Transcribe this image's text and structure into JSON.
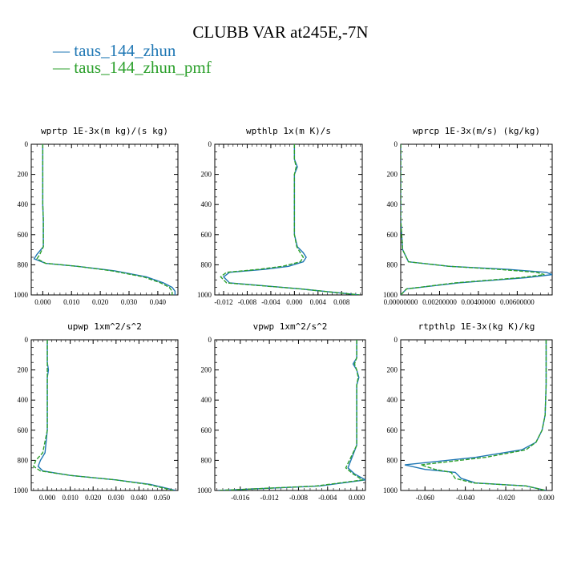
{
  "title": "CLUBB VAR at245E,-7N",
  "legend": [
    {
      "label": "taus_144_zhun",
      "color": "#1f77b4",
      "dash": "solid"
    },
    {
      "label": "taus_144_zhun_pmf",
      "color": "#2ca02c",
      "dash": "dashed"
    }
  ],
  "chart_data": [
    {
      "type": "line",
      "title": "wprtp  1E-3x(m kg)/(s kg)",
      "xlim": [
        -0.004,
        0.047
      ],
      "ylim": [
        1000,
        0
      ],
      "xticks": [
        0.0,
        0.01,
        0.02,
        0.03,
        0.04
      ],
      "xtick_labels": [
        "0.000",
        "0.010",
        "0.020",
        "0.030",
        "0.040"
      ],
      "yticks": [
        0,
        200,
        400,
        600,
        800,
        1000
      ],
      "series": [
        {
          "name": "taus_144_zhun",
          "color": "#1f77b4",
          "dash": "solid",
          "x": [
            0.0,
            0.0,
            0.0,
            0.0,
            0.0,
            0.0002,
            0.0002,
            -0.002,
            -0.003,
            0.001,
            0.012,
            0.025,
            0.036,
            0.042,
            0.045,
            0.046,
            0.046
          ],
          "y": [
            0,
            100,
            200,
            300,
            400,
            500,
            680,
            730,
            760,
            790,
            810,
            840,
            880,
            920,
            950,
            975,
            1000
          ]
        },
        {
          "name": "taus_144_zhun_pmf",
          "color": "#2ca02c",
          "dash": "dashed",
          "x": [
            0.0,
            0.0,
            0.0,
            0.0,
            0.0,
            0.0002,
            0.0002,
            -0.001,
            -0.002,
            0.001,
            0.012,
            0.024,
            0.035,
            0.041,
            0.044,
            0.045,
            0.045
          ],
          "y": [
            0,
            100,
            200,
            300,
            400,
            500,
            680,
            730,
            760,
            790,
            810,
            840,
            880,
            920,
            950,
            975,
            1000
          ]
        }
      ]
    },
    {
      "type": "line",
      "title": "wpthlp  1x(m K)/s",
      "xlim": [
        -0.0135,
        0.0115
      ],
      "ylim": [
        1000,
        0
      ],
      "xticks": [
        -0.012,
        -0.008,
        -0.004,
        0.0,
        0.004,
        0.008
      ],
      "xtick_labels": [
        "-0.012",
        "-0.008",
        "-0.004",
        "0.000",
        "0.004",
        "0.008"
      ],
      "yticks": [
        0,
        200,
        400,
        600,
        800,
        1000
      ],
      "series": [
        {
          "name": "taus_144_zhun",
          "color": "#1f77b4",
          "dash": "solid",
          "x": [
            0.0,
            0.0,
            0.0005,
            0.0,
            0.0,
            0.0,
            0.0,
            0.0005,
            0.0015,
            0.002,
            0.0015,
            -0.001,
            -0.005,
            -0.011,
            -0.012,
            -0.011,
            0.001,
            0.011
          ],
          "y": [
            0,
            100,
            150,
            200,
            300,
            400,
            600,
            680,
            720,
            750,
            780,
            810,
            830,
            850,
            880,
            920,
            960,
            1000
          ]
        },
        {
          "name": "taus_144_zhun_pmf",
          "color": "#2ca02c",
          "dash": "dashed",
          "x": [
            0.0,
            0.0,
            0.0003,
            0.0,
            0.0,
            0.0,
            0.0,
            0.0004,
            0.001,
            0.0015,
            0.001,
            -0.002,
            -0.006,
            -0.0115,
            -0.0125,
            -0.0115,
            0.001,
            0.011
          ],
          "y": [
            0,
            100,
            150,
            200,
            300,
            400,
            600,
            680,
            720,
            750,
            780,
            810,
            830,
            850,
            880,
            920,
            960,
            1000
          ]
        }
      ]
    },
    {
      "type": "line",
      "title": "wprcp  1E-3x(m/s) (kg/kg)",
      "xlim": [
        0.0,
        0.0078
      ],
      "ylim": [
        1000,
        0
      ],
      "xticks": [
        0.0,
        0.002,
        0.004,
        0.006
      ],
      "xtick_labels": [
        "0.00000000",
        "0.00200000",
        "0.00400000",
        "0.00600000"
      ],
      "yticks": [
        0,
        200,
        400,
        600,
        800,
        1000
      ],
      "series": [
        {
          "name": "taus_144_zhun",
          "color": "#1f77b4",
          "dash": "solid",
          "x": [
            0.0,
            0.0,
            0.0,
            0.0001,
            0.0004,
            0.0025,
            0.0055,
            0.0075,
            0.0078,
            0.0065,
            0.003,
            0.0003,
            0.0
          ],
          "y": [
            0,
            200,
            500,
            700,
            780,
            810,
            830,
            850,
            865,
            885,
            920,
            960,
            1000
          ]
        },
        {
          "name": "taus_144_zhun_pmf",
          "color": "#2ca02c",
          "dash": "dashed",
          "x": [
            0.0,
            0.0,
            0.0,
            0.0001,
            0.0004,
            0.0025,
            0.005,
            0.007,
            0.0074,
            0.0062,
            0.0028,
            0.0003,
            0.0
          ],
          "y": [
            0,
            200,
            500,
            700,
            780,
            810,
            830,
            850,
            865,
            885,
            920,
            960,
            1000
          ]
        }
      ]
    },
    {
      "type": "line",
      "title": "upwp  1xm^2/s^2",
      "xlim": [
        -0.007,
        0.057
      ],
      "ylim": [
        1000,
        0
      ],
      "xticks": [
        0.0,
        0.01,
        0.02,
        0.03,
        0.04,
        0.05
      ],
      "xtick_labels": [
        "0.000",
        "0.010",
        "0.020",
        "0.030",
        "0.040",
        "0.050"
      ],
      "yticks": [
        0,
        200,
        400,
        600,
        800,
        1000
      ],
      "series": [
        {
          "name": "taus_144_zhun",
          "color": "#1f77b4",
          "dash": "solid",
          "x": [
            0.0,
            0.0,
            0.0005,
            0.0,
            0.0,
            0.0,
            -0.001,
            -0.003,
            -0.004,
            -0.002,
            0.01,
            0.03,
            0.045,
            0.052,
            0.056
          ],
          "y": [
            0,
            150,
            200,
            250,
            400,
            600,
            750,
            800,
            840,
            870,
            900,
            930,
            960,
            985,
            1000
          ]
        },
        {
          "name": "taus_144_zhun_pmf",
          "color": "#2ca02c",
          "dash": "dashed",
          "x": [
            0.0,
            0.0,
            0.0,
            0.0,
            0.0,
            0.0,
            -0.002,
            -0.005,
            -0.006,
            -0.003,
            0.01,
            0.03,
            0.044,
            0.051,
            0.055
          ],
          "y": [
            0,
            150,
            200,
            250,
            400,
            600,
            750,
            800,
            840,
            870,
            900,
            930,
            960,
            985,
            1000
          ]
        }
      ]
    },
    {
      "type": "line",
      "title": "vpwp  1xm^2/s^2",
      "xlim": [
        -0.0195,
        0.0012
      ],
      "ylim": [
        1000,
        0
      ],
      "xticks": [
        -0.016,
        -0.012,
        -0.008,
        -0.004,
        0.0
      ],
      "xtick_labels": [
        "-0.016",
        "-0.012",
        "-0.008",
        "-0.004",
        "0.000"
      ],
      "yticks": [
        0,
        200,
        400,
        600,
        800,
        1000
      ],
      "series": [
        {
          "name": "taus_144_zhun",
          "color": "#1f77b4",
          "dash": "solid",
          "x": [
            0.0,
            0.0,
            -0.0005,
            0.0,
            0.0003,
            0.0,
            0.0,
            0.0,
            -0.0008,
            -0.0012,
            -0.0003,
            0.0012,
            -0.005,
            -0.019
          ],
          "y": [
            0,
            120,
            160,
            200,
            250,
            300,
            500,
            700,
            800,
            850,
            890,
            930,
            970,
            1000
          ]
        },
        {
          "name": "taus_144_zhun_pmf",
          "color": "#2ca02c",
          "dash": "dashed",
          "x": [
            0.0,
            0.0,
            -0.0003,
            0.0,
            0.0002,
            0.0,
            0.0,
            0.0,
            -0.001,
            -0.0015,
            -0.0005,
            0.0008,
            -0.0055,
            -0.019
          ],
          "y": [
            0,
            120,
            160,
            200,
            250,
            300,
            500,
            700,
            800,
            850,
            890,
            930,
            970,
            1000
          ]
        }
      ]
    },
    {
      "type": "line",
      "title": "rtpthlp  1E-3x(kg K)/kg",
      "xlim": [
        -0.072,
        0.003
      ],
      "ylim": [
        1000,
        0
      ],
      "xticks": [
        -0.06,
        -0.04,
        -0.02,
        0.0
      ],
      "xtick_labels": [
        "-0.060",
        "-0.040",
        "-0.020",
        "0.000"
      ],
      "yticks": [
        0,
        200,
        400,
        600,
        800,
        1000
      ],
      "series": [
        {
          "name": "taus_144_zhun",
          "color": "#1f77b4",
          "dash": "solid",
          "x": [
            0.0,
            0.0,
            -0.0005,
            -0.002,
            -0.005,
            -0.012,
            -0.035,
            -0.07,
            -0.06,
            -0.045,
            -0.042,
            -0.035,
            -0.01,
            0.0
          ],
          "y": [
            0,
            300,
            500,
            600,
            680,
            730,
            780,
            830,
            860,
            880,
            920,
            950,
            970,
            1000
          ]
        },
        {
          "name": "taus_144_zhun_pmf",
          "color": "#2ca02c",
          "dash": "dashed",
          "x": [
            0.0,
            0.0,
            -0.0005,
            -0.002,
            -0.005,
            -0.01,
            -0.03,
            -0.062,
            -0.055,
            -0.047,
            -0.045,
            -0.036,
            -0.01,
            0.0
          ],
          "y": [
            0,
            300,
            500,
            600,
            680,
            730,
            780,
            830,
            860,
            880,
            920,
            950,
            970,
            1000
          ]
        }
      ]
    }
  ]
}
